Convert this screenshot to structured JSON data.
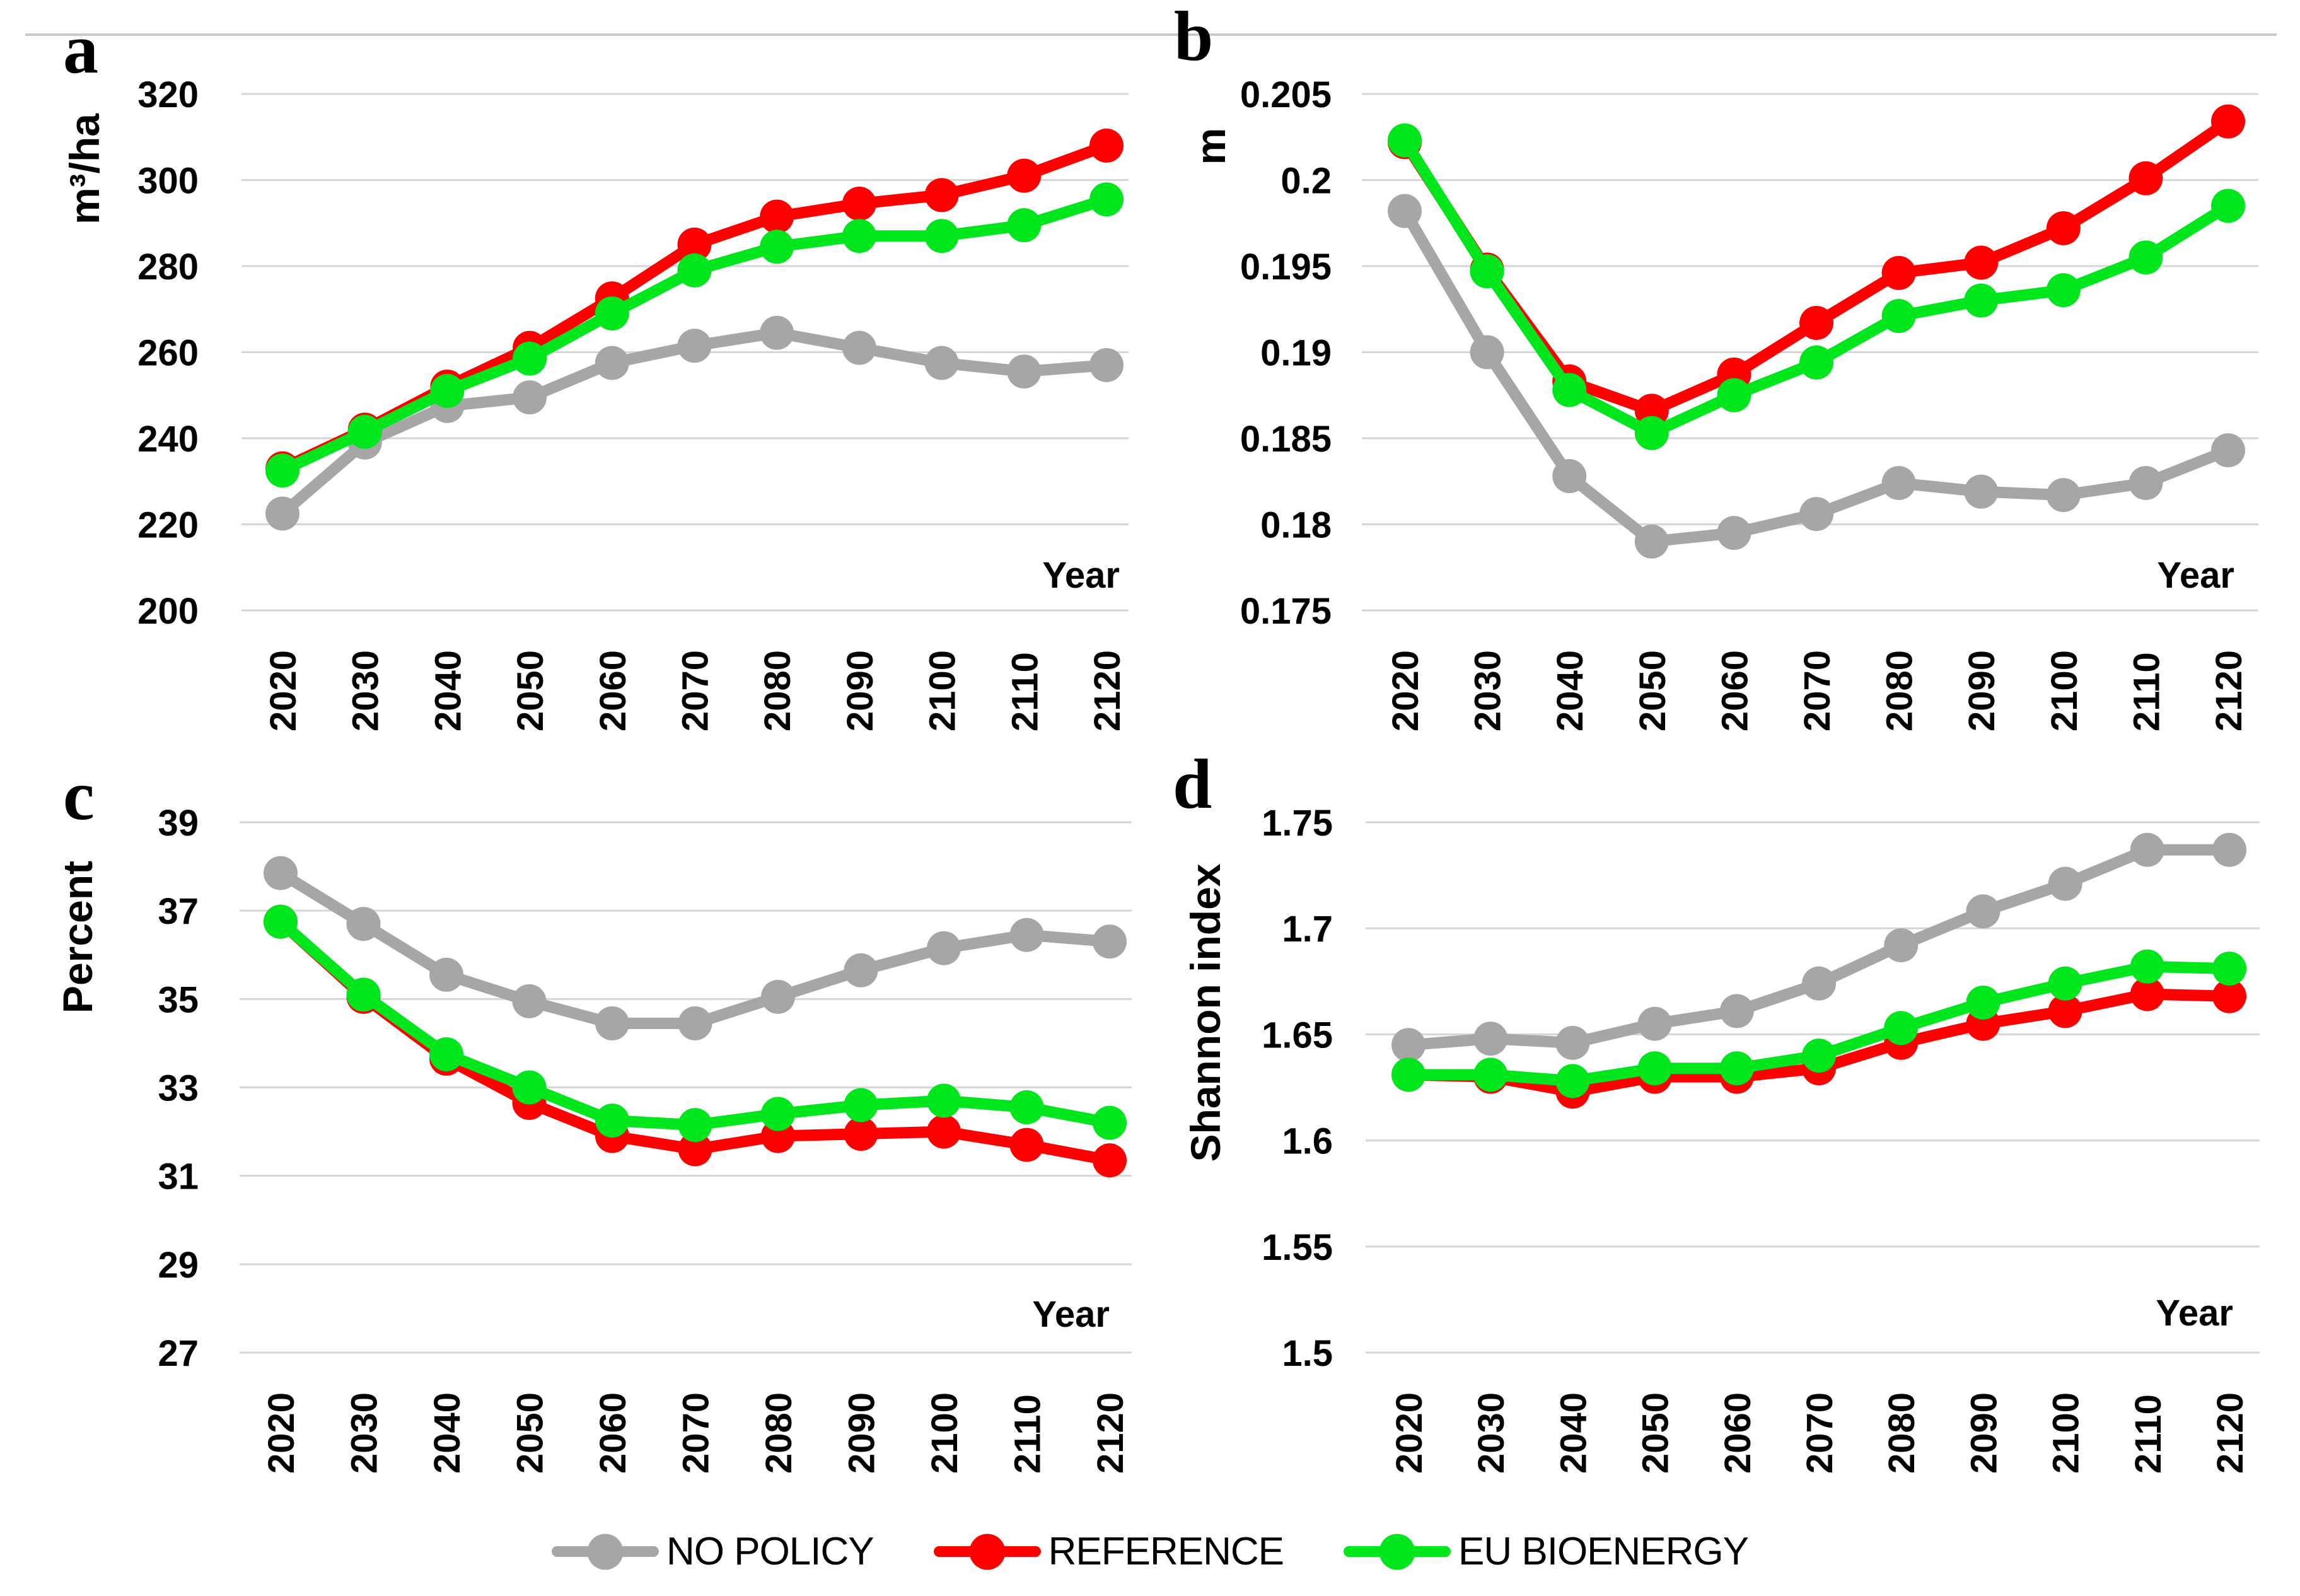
{
  "style": {
    "background": "#ffffff",
    "grid_color": "#d6d6d6",
    "top_border_color": "#c9c9c9",
    "tick_color": "#000000"
  },
  "legend": {
    "items": [
      {
        "label": "NO POLICY",
        "color": "#a6a6a6"
      },
      {
        "label": "REFERENCE",
        "color": "#fe0000"
      },
      {
        "label": "EU BIOENERGY",
        "color": "#00e61c"
      }
    ]
  },
  "chart_data": [
    {
      "type": "line",
      "panel_label": "a",
      "ylabel": "m³/ha",
      "xlabel": "Year",
      "ylim": [
        200,
        320
      ],
      "yticks": [
        "200",
        "220",
        "240",
        "260",
        "280",
        "300",
        "320"
      ],
      "grid": true,
      "legend_position": "bottom-shared",
      "categories": [
        "2020",
        "2030",
        "2040",
        "2050",
        "2060",
        "2070",
        "2080",
        "2090",
        "2100",
        "2110",
        "2120"
      ],
      "series": [
        {
          "name": "NO POLICY",
          "color": "#a6a6a6",
          "values": [
            222.5,
            239,
            247.5,
            249.5,
            257.5,
            261.5,
            264.5,
            261,
            257.5,
            255.5,
            257
          ]
        },
        {
          "name": "REFERENCE",
          "color": "#fe0000",
          "values": [
            233,
            242,
            252,
            261,
            272.5,
            285,
            291.5,
            294.5,
            296.5,
            301,
            308
          ]
        },
        {
          "name": "EU BIOENERGY",
          "color": "#00e61c",
          "values": [
            232.5,
            241.5,
            251,
            258.5,
            269,
            279,
            284.5,
            287,
            287,
            289.5,
            295.5
          ]
        }
      ]
    },
    {
      "type": "line",
      "panel_label": "b",
      "ylabel": "m",
      "xlabel": "Year",
      "ylim": [
        0.175,
        0.205
      ],
      "yticks": [
        "0.175",
        "0.18",
        "0.185",
        "0.19",
        "0.195",
        "0.2",
        "0.205"
      ],
      "grid": true,
      "legend_position": "bottom-shared",
      "categories": [
        "2020",
        "2030",
        "2040",
        "2050",
        "2060",
        "2070",
        "2080",
        "2090",
        "2100",
        "2110",
        "2120"
      ],
      "series": [
        {
          "name": "NO POLICY",
          "color": "#a6a6a6",
          "values": [
            0.1982,
            0.19,
            0.1828,
            0.179,
            0.1795,
            0.1806,
            0.1824,
            0.1819,
            0.1817,
            0.1824,
            0.1843
          ]
        },
        {
          "name": "REFERENCE",
          "color": "#fe0000",
          "values": [
            0.2022,
            0.1948,
            0.1883,
            0.1866,
            0.1887,
            0.1917,
            0.1946,
            0.1952,
            0.1972,
            0.2001,
            0.2034
          ]
        },
        {
          "name": "EU BIOENERGY",
          "color": "#00e61c",
          "values": [
            0.2023,
            0.1947,
            0.1878,
            0.1853,
            0.1875,
            0.1894,
            0.1921,
            0.193,
            0.1936,
            0.1955,
            0.1985
          ]
        }
      ]
    },
    {
      "type": "line",
      "panel_label": "c",
      "ylabel": "Percent",
      "xlabel": "Year",
      "ylim": [
        27,
        39
      ],
      "yticks": [
        "27",
        "29",
        "31",
        "33",
        "35",
        "37",
        "39"
      ],
      "grid": true,
      "legend_position": "bottom-shared",
      "categories": [
        "2020",
        "2030",
        "2040",
        "2050",
        "2060",
        "2070",
        "2080",
        "2090",
        "2100",
        "2110",
        "2120"
      ],
      "series": [
        {
          "name": "NO POLICY",
          "color": "#a6a6a6",
          "values": [
            37.85,
            36.7,
            35.55,
            34.95,
            34.45,
            34.45,
            35.05,
            35.65,
            36.15,
            36.45,
            36.3
          ]
        },
        {
          "name": "REFERENCE",
          "color": "#fe0000",
          "values": [
            36.75,
            35.05,
            33.65,
            32.65,
            31.9,
            31.6,
            31.9,
            31.95,
            32.0,
            31.7,
            31.35
          ]
        },
        {
          "name": "EU BIOENERGY",
          "color": "#00e61c",
          "values": [
            36.75,
            35.1,
            33.75,
            33.0,
            32.25,
            32.15,
            32.4,
            32.6,
            32.7,
            32.55,
            32.2
          ]
        }
      ]
    },
    {
      "type": "line",
      "panel_label": "d",
      "ylabel": "Shannon index",
      "xlabel": "Year",
      "ylim": [
        1.5,
        1.75
      ],
      "yticks": [
        "1.5",
        "1.55",
        "1.6",
        "1.65",
        "1.7",
        "1.75"
      ],
      "grid": true,
      "legend_position": "bottom-shared",
      "categories": [
        "2020",
        "2030",
        "2040",
        "2050",
        "2060",
        "2070",
        "2080",
        "2090",
        "2100",
        "2110",
        "2120"
      ],
      "series": [
        {
          "name": "NO POLICY",
          "color": "#a6a6a6",
          "values": [
            1.645,
            1.648,
            1.646,
            1.655,
            1.661,
            1.674,
            1.692,
            1.708,
            1.721,
            1.737,
            1.737
          ]
        },
        {
          "name": "REFERENCE",
          "color": "#fe0000",
          "values": [
            1.631,
            1.63,
            1.623,
            1.63,
            1.63,
            1.634,
            1.646,
            1.655,
            1.661,
            1.669,
            1.668
          ]
        },
        {
          "name": "EU BIOENERGY",
          "color": "#00e61c",
          "values": [
            1.631,
            1.631,
            1.628,
            1.634,
            1.634,
            1.64,
            1.653,
            1.665,
            1.674,
            1.682,
            1.681
          ]
        }
      ]
    }
  ]
}
